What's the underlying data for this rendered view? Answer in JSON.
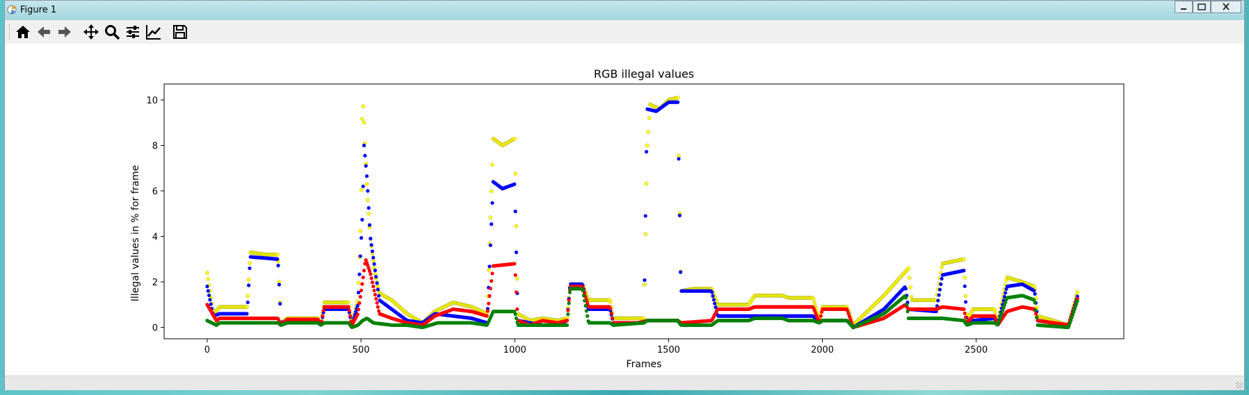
{
  "window": {
    "title": "Figure 1"
  },
  "toolbar": {
    "buttons": [
      {
        "name": "home-button",
        "icon": "home-icon"
      },
      {
        "name": "back-button",
        "icon": "arrow-left-icon"
      },
      {
        "name": "forward-button",
        "icon": "arrow-right-icon"
      },
      {
        "name": "pan-button",
        "icon": "move-icon"
      },
      {
        "name": "zoom-button",
        "icon": "magnifier-icon"
      },
      {
        "name": "configure-subplots-button",
        "icon": "sliders-icon"
      },
      {
        "name": "edit-axis-button",
        "icon": "line-chart-icon"
      },
      {
        "name": "save-button",
        "icon": "floppy-disk-icon"
      }
    ]
  },
  "chart_data": {
    "type": "scatter",
    "title": "RGB illegal values",
    "xlabel": "Frames",
    "ylabel": "Illegal values in % for frame",
    "xlim": [
      -140,
      2980
    ],
    "ylim": [
      -0.5,
      10.7
    ],
    "xticks": [
      0,
      500,
      1000,
      1500,
      2000,
      2500
    ],
    "yticks": [
      0,
      2,
      4,
      6,
      8,
      10
    ],
    "grid": false,
    "legend": "none",
    "series": [
      {
        "color": "#ff0000",
        "points": [
          [
            0,
            1.0
          ],
          [
            30,
            0.3
          ],
          [
            40,
            0.4
          ],
          [
            130,
            0.4
          ],
          [
            135,
            0.4
          ],
          [
            230,
            0.4
          ],
          [
            240,
            0.1
          ],
          [
            260,
            0.35
          ],
          [
            360,
            0.35
          ],
          [
            370,
            0.1
          ],
          [
            380,
            0.9
          ],
          [
            460,
            0.9
          ],
          [
            470,
            0.1
          ],
          [
            490,
            0.6
          ],
          [
            505,
            2.0
          ],
          [
            515,
            3.0
          ],
          [
            530,
            2.4
          ],
          [
            560,
            0.6
          ],
          [
            600,
            0.4
          ],
          [
            650,
            0.2
          ],
          [
            700,
            0.1
          ],
          [
            740,
            0.5
          ],
          [
            800,
            0.8
          ],
          [
            860,
            0.7
          ],
          [
            910,
            0.5
          ],
          [
            930,
            2.7
          ],
          [
            1000,
            2.8
          ],
          [
            1010,
            0.3
          ],
          [
            1050,
            0.1
          ],
          [
            1090,
            0.3
          ],
          [
            1140,
            0.2
          ],
          [
            1170,
            0.3
          ],
          [
            1180,
            1.8
          ],
          [
            1220,
            1.8
          ],
          [
            1240,
            0.9
          ],
          [
            1310,
            0.9
          ],
          [
            1320,
            0.2
          ],
          [
            1400,
            0.2
          ],
          [
            1430,
            0.3
          ],
          [
            1530,
            0.3
          ],
          [
            1540,
            0.2
          ],
          [
            1640,
            0.3
          ],
          [
            1660,
            0.8
          ],
          [
            1760,
            0.8
          ],
          [
            1780,
            0.9
          ],
          [
            1870,
            0.9
          ],
          [
            1890,
            0.9
          ],
          [
            1970,
            0.9
          ],
          [
            1990,
            0.2
          ],
          [
            2000,
            0.8
          ],
          [
            2080,
            0.8
          ],
          [
            2100,
            0.0
          ],
          [
            2200,
            0.4
          ],
          [
            2270,
            1.0
          ],
          [
            2280,
            0.8
          ],
          [
            2370,
            0.8
          ],
          [
            2390,
            0.9
          ],
          [
            2460,
            0.8
          ],
          [
            2470,
            0.2
          ],
          [
            2490,
            0.5
          ],
          [
            2560,
            0.5
          ],
          [
            2570,
            0.1
          ],
          [
            2600,
            0.7
          ],
          [
            2650,
            0.9
          ],
          [
            2690,
            0.8
          ],
          [
            2700,
            0.3
          ],
          [
            2800,
            0.1
          ],
          [
            2830,
            1.3
          ]
        ]
      },
      {
        "color": "#0000ff",
        "points": [
          [
            0,
            1.8
          ],
          [
            20,
            0.5
          ],
          [
            40,
            0.6
          ],
          [
            130,
            0.6
          ],
          [
            140,
            3.1
          ],
          [
            230,
            3.0
          ],
          [
            240,
            0.2
          ],
          [
            260,
            0.3
          ],
          [
            360,
            0.3
          ],
          [
            370,
            0.1
          ],
          [
            380,
            0.8
          ],
          [
            460,
            0.8
          ],
          [
            470,
            0.1
          ],
          [
            490,
            1.0
          ],
          [
            505,
            5.0
          ],
          [
            510,
            8.0
          ],
          [
            520,
            6.5
          ],
          [
            530,
            4.0
          ],
          [
            560,
            1.2
          ],
          [
            600,
            0.8
          ],
          [
            650,
            0.3
          ],
          [
            700,
            0.2
          ],
          [
            740,
            0.6
          ],
          [
            800,
            0.5
          ],
          [
            860,
            0.4
          ],
          [
            910,
            0.2
          ],
          [
            930,
            6.4
          ],
          [
            960,
            6.1
          ],
          [
            1000,
            6.3
          ],
          [
            1010,
            0.3
          ],
          [
            1050,
            0.2
          ],
          [
            1090,
            0.1
          ],
          [
            1140,
            0.1
          ],
          [
            1170,
            0.3
          ],
          [
            1180,
            1.9
          ],
          [
            1220,
            1.9
          ],
          [
            1240,
            0.8
          ],
          [
            1310,
            0.8
          ],
          [
            1320,
            0.2
          ],
          [
            1420,
            0.2
          ],
          [
            1430,
            9.6
          ],
          [
            1460,
            9.5
          ],
          [
            1500,
            9.9
          ],
          [
            1530,
            9.9
          ],
          [
            1540,
            1.6
          ],
          [
            1640,
            1.6
          ],
          [
            1660,
            0.5
          ],
          [
            1760,
            0.5
          ],
          [
            1780,
            0.5
          ],
          [
            1870,
            0.5
          ],
          [
            1890,
            0.5
          ],
          [
            1970,
            0.5
          ],
          [
            1990,
            0.2
          ],
          [
            2000,
            0.3
          ],
          [
            2080,
            0.3
          ],
          [
            2100,
            0.0
          ],
          [
            2200,
            0.8
          ],
          [
            2270,
            1.8
          ],
          [
            2280,
            0.8
          ],
          [
            2370,
            0.7
          ],
          [
            2390,
            2.3
          ],
          [
            2460,
            2.5
          ],
          [
            2470,
            0.2
          ],
          [
            2490,
            0.3
          ],
          [
            2560,
            0.4
          ],
          [
            2570,
            0.1
          ],
          [
            2600,
            1.8
          ],
          [
            2650,
            1.9
          ],
          [
            2690,
            1.6
          ],
          [
            2700,
            0.3
          ],
          [
            2800,
            0.1
          ],
          [
            2830,
            1.4
          ]
        ]
      },
      {
        "color": "#008000",
        "points": [
          [
            0,
            0.3
          ],
          [
            30,
            0.1
          ],
          [
            40,
            0.2
          ],
          [
            130,
            0.2
          ],
          [
            135,
            0.2
          ],
          [
            230,
            0.2
          ],
          [
            240,
            0.1
          ],
          [
            260,
            0.2
          ],
          [
            360,
            0.2
          ],
          [
            370,
            0.1
          ],
          [
            380,
            0.2
          ],
          [
            460,
            0.2
          ],
          [
            470,
            0.0
          ],
          [
            490,
            0.1
          ],
          [
            505,
            0.3
          ],
          [
            520,
            0.4
          ],
          [
            540,
            0.2
          ],
          [
            600,
            0.1
          ],
          [
            650,
            0.1
          ],
          [
            700,
            0.0
          ],
          [
            750,
            0.2
          ],
          [
            800,
            0.2
          ],
          [
            860,
            0.2
          ],
          [
            910,
            0.1
          ],
          [
            930,
            0.7
          ],
          [
            1000,
            0.7
          ],
          [
            1010,
            0.1
          ],
          [
            1050,
            0.1
          ],
          [
            1090,
            0.1
          ],
          [
            1140,
            0.1
          ],
          [
            1170,
            0.1
          ],
          [
            1180,
            1.7
          ],
          [
            1220,
            1.7
          ],
          [
            1240,
            0.2
          ],
          [
            1310,
            0.2
          ],
          [
            1320,
            0.1
          ],
          [
            1420,
            0.2
          ],
          [
            1430,
            0.3
          ],
          [
            1530,
            0.3
          ],
          [
            1540,
            0.1
          ],
          [
            1640,
            0.1
          ],
          [
            1660,
            0.3
          ],
          [
            1760,
            0.3
          ],
          [
            1780,
            0.4
          ],
          [
            1870,
            0.4
          ],
          [
            1890,
            0.3
          ],
          [
            1970,
            0.3
          ],
          [
            1990,
            0.2
          ],
          [
            2000,
            0.3
          ],
          [
            2080,
            0.3
          ],
          [
            2100,
            0.0
          ],
          [
            2200,
            0.6
          ],
          [
            2270,
            1.4
          ],
          [
            2280,
            0.4
          ],
          [
            2370,
            0.4
          ],
          [
            2390,
            0.4
          ],
          [
            2460,
            0.3
          ],
          [
            2470,
            0.1
          ],
          [
            2490,
            0.2
          ],
          [
            2560,
            0.2
          ],
          [
            2570,
            0.1
          ],
          [
            2600,
            1.3
          ],
          [
            2650,
            1.4
          ],
          [
            2690,
            1.2
          ],
          [
            2700,
            0.1
          ],
          [
            2800,
            0.0
          ],
          [
            2830,
            1.2
          ]
        ]
      },
      {
        "color": "#ffff00",
        "points": [
          [
            0,
            2.4
          ],
          [
            20,
            0.6
          ],
          [
            40,
            0.9
          ],
          [
            130,
            0.9
          ],
          [
            140,
            3.3
          ],
          [
            190,
            3.2
          ],
          [
            230,
            3.2
          ],
          [
            240,
            0.2
          ],
          [
            260,
            0.4
          ],
          [
            360,
            0.4
          ],
          [
            370,
            0.1
          ],
          [
            380,
            1.1
          ],
          [
            460,
            1.1
          ],
          [
            470,
            0.1
          ],
          [
            490,
            1.2
          ],
          [
            500,
            5.0
          ],
          [
            505,
            10.2
          ],
          [
            510,
            9.0
          ],
          [
            520,
            6.0
          ],
          [
            530,
            4.0
          ],
          [
            545,
            2.4
          ],
          [
            560,
            1.5
          ],
          [
            600,
            1.2
          ],
          [
            650,
            0.6
          ],
          [
            700,
            0.2
          ],
          [
            740,
            0.7
          ],
          [
            800,
            1.1
          ],
          [
            860,
            0.9
          ],
          [
            910,
            0.6
          ],
          [
            930,
            8.3
          ],
          [
            960,
            8.0
          ],
          [
            1000,
            8.3
          ],
          [
            1010,
            0.6
          ],
          [
            1050,
            0.3
          ],
          [
            1090,
            0.4
          ],
          [
            1140,
            0.3
          ],
          [
            1170,
            0.4
          ],
          [
            1180,
            1.9
          ],
          [
            1220,
            1.9
          ],
          [
            1240,
            1.2
          ],
          [
            1310,
            1.2
          ],
          [
            1320,
            0.4
          ],
          [
            1420,
            0.4
          ],
          [
            1430,
            7.8
          ],
          [
            1440,
            9.8
          ],
          [
            1470,
            9.6
          ],
          [
            1500,
            10.0
          ],
          [
            1530,
            10.1
          ],
          [
            1540,
            1.6
          ],
          [
            1580,
            1.7
          ],
          [
            1640,
            1.7
          ],
          [
            1660,
            1.0
          ],
          [
            1760,
            1.0
          ],
          [
            1780,
            1.4
          ],
          [
            1870,
            1.4
          ],
          [
            1890,
            1.3
          ],
          [
            1970,
            1.3
          ],
          [
            1990,
            0.3
          ],
          [
            2000,
            0.9
          ],
          [
            2080,
            0.9
          ],
          [
            2100,
            0.1
          ],
          [
            2200,
            1.4
          ],
          [
            2280,
            2.6
          ],
          [
            2290,
            1.2
          ],
          [
            2370,
            1.2
          ],
          [
            2390,
            2.8
          ],
          [
            2460,
            3.0
          ],
          [
            2470,
            0.3
          ],
          [
            2490,
            0.8
          ],
          [
            2560,
            0.8
          ],
          [
            2570,
            0.2
          ],
          [
            2600,
            2.2
          ],
          [
            2650,
            2.0
          ],
          [
            2690,
            1.8
          ],
          [
            2700,
            0.5
          ],
          [
            2800,
            0.1
          ],
          [
            2830,
            1.6
          ]
        ]
      }
    ]
  }
}
